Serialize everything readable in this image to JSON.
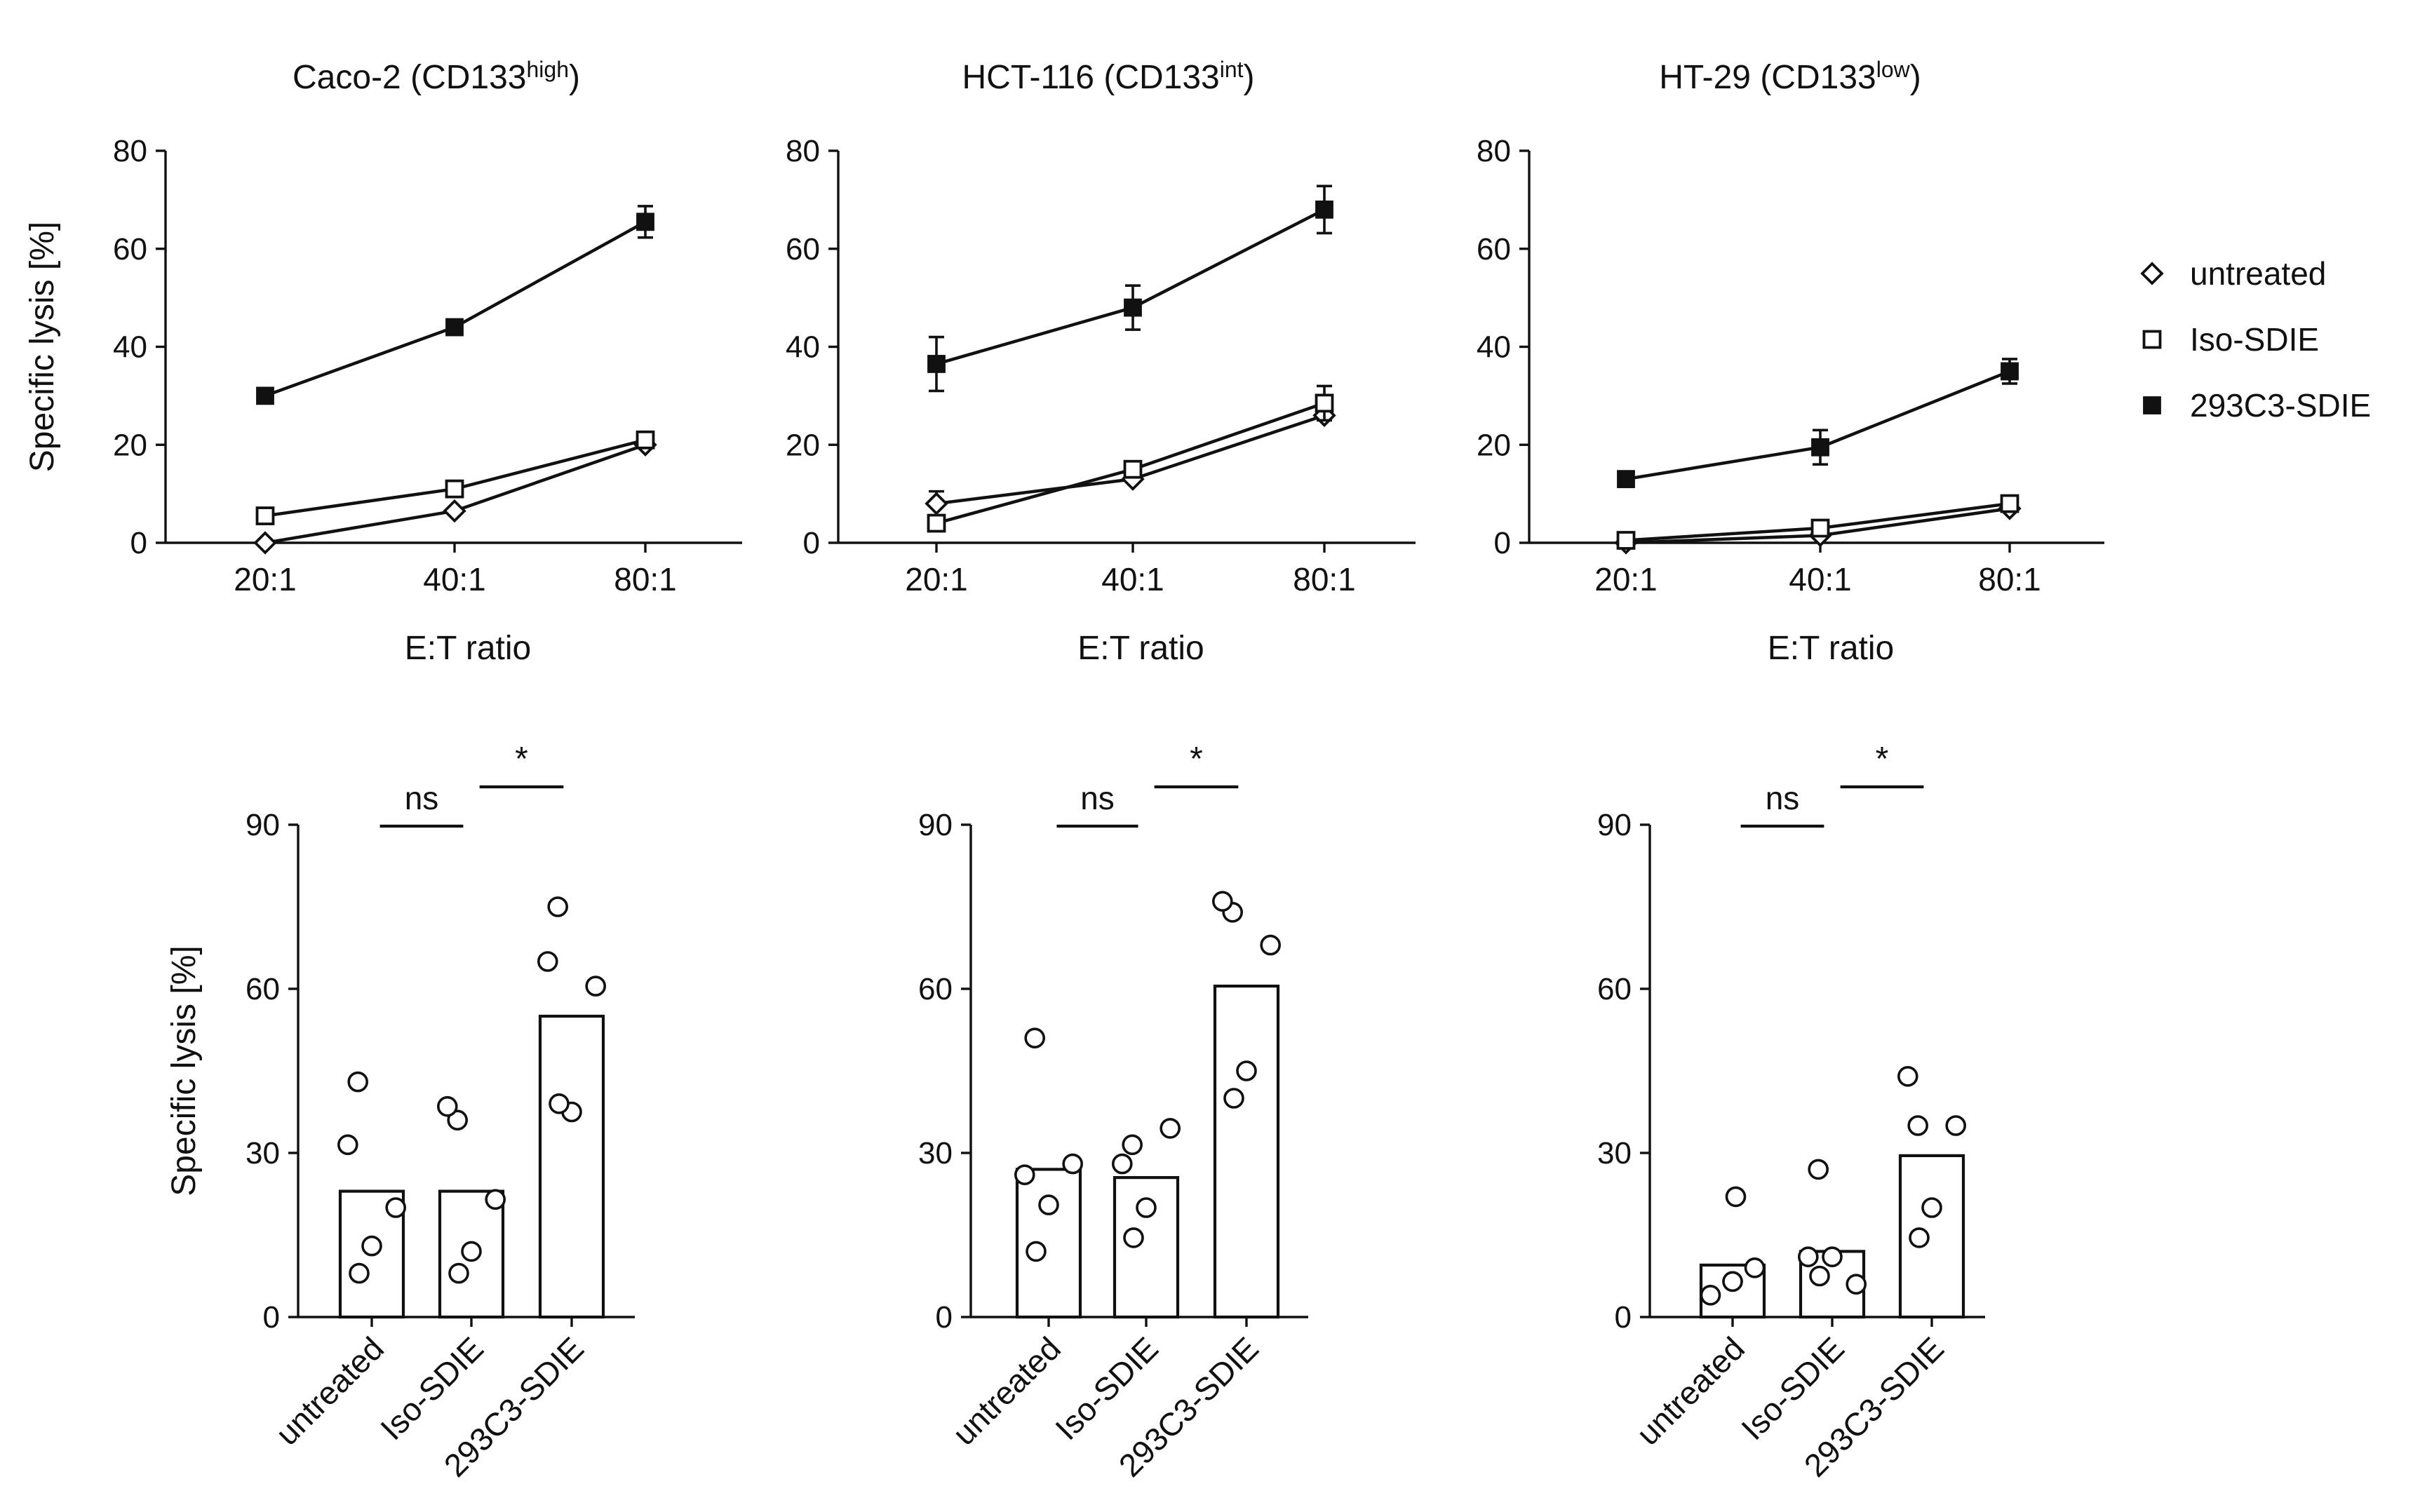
{
  "chart_data": [
    {
      "type": "line",
      "title": "Caco-2 (CD133",
      "title_sup": "high",
      "title_end": ")",
      "xlabel": "E:T ratio",
      "ylabel": "Specific lysis [%]",
      "categories": [
        "20:1",
        "40:1",
        "80:1"
      ],
      "ylim": [
        0,
        80
      ],
      "yticks": [
        0,
        20,
        40,
        60,
        80
      ],
      "series": [
        {
          "name": "untreated",
          "marker": "diamond-open",
          "values": [
            0,
            6.5,
            20
          ],
          "errors": [
            0,
            0,
            0
          ]
        },
        {
          "name": "Iso-SDIE",
          "marker": "square-open",
          "values": [
            5.5,
            11,
            21
          ],
          "errors": [
            0,
            0,
            0
          ]
        },
        {
          "name": "293C3-SDIE",
          "marker": "square-filled",
          "values": [
            30,
            44,
            65.5
          ],
          "errors": [
            0,
            0,
            3.2
          ]
        }
      ]
    },
    {
      "type": "line",
      "title": "HCT-116 (CD133",
      "title_sup": "int",
      "title_end": ")",
      "xlabel": "E:T ratio",
      "ylabel": "",
      "categories": [
        "20:1",
        "40:1",
        "80:1"
      ],
      "ylim": [
        0,
        80
      ],
      "yticks": [
        0,
        20,
        40,
        60,
        80
      ],
      "series": [
        {
          "name": "untreated",
          "marker": "diamond-open",
          "values": [
            8,
            13,
            26
          ],
          "errors": [
            2.5,
            0,
            0
          ]
        },
        {
          "name": "Iso-SDIE",
          "marker": "square-open",
          "values": [
            4,
            15,
            28.5
          ],
          "errors": [
            0,
            0,
            3.5
          ]
        },
        {
          "name": "293C3-SDIE",
          "marker": "square-filled",
          "values": [
            36.5,
            48,
            68
          ],
          "errors": [
            5.5,
            4.5,
            4.8
          ]
        }
      ]
    },
    {
      "type": "line",
      "title": "HT-29 (CD133",
      "title_sup": "low",
      "title_end": ")",
      "xlabel": "E:T ratio",
      "ylabel": "",
      "categories": [
        "20:1",
        "40:1",
        "80:1"
      ],
      "ylim": [
        0,
        80
      ],
      "yticks": [
        0,
        20,
        40,
        60,
        80
      ],
      "series": [
        {
          "name": "untreated",
          "marker": "diamond-open",
          "values": [
            0,
            1.5,
            7
          ],
          "errors": [
            0,
            0,
            0
          ]
        },
        {
          "name": "Iso-SDIE",
          "marker": "square-open",
          "values": [
            0.5,
            3,
            8
          ],
          "errors": [
            0,
            0,
            0
          ]
        },
        {
          "name": "293C3-SDIE",
          "marker": "square-filled",
          "values": [
            13,
            19.5,
            35
          ],
          "errors": [
            0,
            3.5,
            2.5
          ]
        }
      ]
    },
    {
      "type": "bar",
      "ylabel": "Specific lysis [%]",
      "categories": [
        "untreated",
        "Iso-SDIE",
        "293C3-SDIE"
      ],
      "values": [
        23,
        23,
        55
      ],
      "points": [
        [
          43,
          31.5,
          20,
          13,
          8
        ],
        [
          36,
          38.5,
          21.5,
          12,
          8
        ],
        [
          75,
          65,
          60.5,
          37.5,
          39
        ]
      ],
      "ylim": [
        0,
        90
      ],
      "yticks": [
        0,
        30,
        60,
        90
      ],
      "significance": [
        {
          "from": 0,
          "to": 1,
          "label": "ns"
        },
        {
          "from": 1,
          "to": 2,
          "label": "*"
        }
      ]
    },
    {
      "type": "bar",
      "ylabel": "",
      "categories": [
        "untreated",
        "Iso-SDIE",
        "293C3-SDIE"
      ],
      "values": [
        27,
        25.5,
        60.5
      ],
      "points": [
        [
          51,
          26,
          28,
          20.5,
          12
        ],
        [
          31.5,
          28,
          34.5,
          20,
          14.5
        ],
        [
          74,
          76,
          68,
          45,
          40
        ]
      ],
      "ylim": [
        0,
        90
      ],
      "yticks": [
        0,
        30,
        60,
        90
      ],
      "significance": [
        {
          "from": 0,
          "to": 1,
          "label": "ns"
        },
        {
          "from": 1,
          "to": 2,
          "label": "*"
        }
      ]
    },
    {
      "type": "bar",
      "ylabel": "",
      "categories": [
        "untreated",
        "Iso-SDIE",
        "293C3-SDIE"
      ],
      "values": [
        9.5,
        12,
        29.5
      ],
      "points": [
        [
          22,
          4,
          6.5,
          9,
          6.5
        ],
        [
          27,
          11,
          6,
          11,
          7.5
        ],
        [
          35,
          44,
          35,
          20,
          14.5
        ]
      ],
      "ylim": [
        0,
        90
      ],
      "yticks": [
        0,
        30,
        60,
        90
      ],
      "significance": [
        {
          "from": 0,
          "to": 1,
          "label": "ns"
        },
        {
          "from": 1,
          "to": 2,
          "label": "*"
        }
      ]
    }
  ],
  "legend": {
    "items": [
      {
        "label": "untreated",
        "marker": "diamond-open"
      },
      {
        "label": "Iso-SDIE",
        "marker": "square-open"
      },
      {
        "label": "293C3-SDIE",
        "marker": "square-filled"
      }
    ]
  }
}
